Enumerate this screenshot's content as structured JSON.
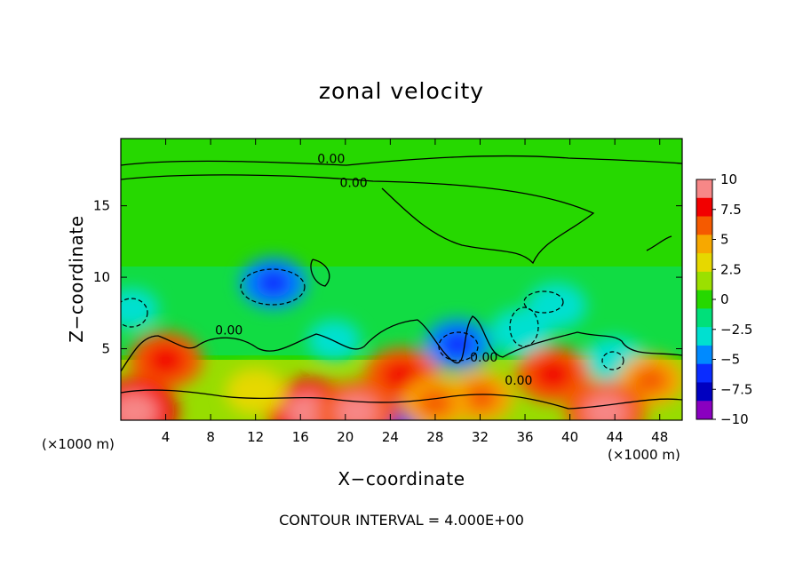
{
  "chart_data": {
    "type": "heatmap",
    "title": "zonal velocity",
    "xlabel": "X−coordinate",
    "ylabel": "Z−coordinate",
    "x_unit_left": "(×1000 m)",
    "x_unit_right": "(×1000 m)",
    "footer": "CONTOUR INTERVAL = 4.000E+00",
    "xlim": [
      0,
      50
    ],
    "ylim": [
      0,
      19.7
    ],
    "x_ticks": [
      4,
      8,
      12,
      16,
      20,
      24,
      28,
      32,
      36,
      40,
      44,
      48
    ],
    "x_tick_labels": [
      "4",
      "8",
      "12",
      "16",
      "20",
      "24",
      "28",
      "32",
      "36",
      "40",
      "44",
      "48"
    ],
    "y_ticks": [
      5,
      10,
      15
    ],
    "y_tick_labels": [
      "5",
      "10",
      "15"
    ],
    "colorbar": {
      "range": [
        -10,
        10
      ],
      "ticks": [
        10,
        7.5,
        5,
        2.5,
        0,
        -2.5,
        -5,
        -7.5,
        -10
      ],
      "tick_labels": [
        "10",
        "7.5",
        "5",
        "2.5",
        "0",
        "−2.5",
        "−5",
        "−7.5",
        "−10"
      ],
      "colors": [
        "#f78787",
        "#f20000",
        "#f55a00",
        "#f7a800",
        "#e6d800",
        "#9be000",
        "#26d800",
        "#00e07a",
        "#00e0d0",
        "#008aff",
        "#0a2cff",
        "#0000c0",
        "#8a00c0"
      ]
    },
    "contour_labels": [
      {
        "text": "0.00",
        "x": 17.5,
        "y": 18.0
      },
      {
        "text": "0.00",
        "x": 19.5,
        "y": 16.3
      },
      {
        "text": "0.00",
        "x": 8.4,
        "y": 6.0
      },
      {
        "text": "0.00",
        "x": 31.1,
        "y": 4.1
      },
      {
        "text": "0.00",
        "x": 34.2,
        "y": 2.5
      }
    ],
    "features": [
      {
        "kind": "negative",
        "x": 13.6,
        "y": 9.6,
        "value": -5
      },
      {
        "kind": "negative",
        "x": 30.0,
        "y": 5.3,
        "value": -5
      },
      {
        "kind": "negative",
        "x": 38.8,
        "y": 8.0,
        "value": -4
      },
      {
        "kind": "negative",
        "x": 35.6,
        "y": 6.2,
        "value": -4
      },
      {
        "kind": "negative",
        "x": 19.0,
        "y": 5.6,
        "value": -3
      },
      {
        "kind": "negative",
        "x": 44.0,
        "y": 4.2,
        "value": -4
      },
      {
        "kind": "negative",
        "x": 1.0,
        "y": 7.8,
        "value": -3
      },
      {
        "kind": "negative",
        "x": 24.2,
        "y": 0.6,
        "value": -6
      },
      {
        "kind": "positive",
        "x": 4.0,
        "y": 4.2,
        "value": 6
      },
      {
        "kind": "positive",
        "x": 25.0,
        "y": 3.1,
        "value": 6
      },
      {
        "kind": "positive",
        "x": 38.5,
        "y": 3.2,
        "value": 6
      },
      {
        "kind": "positive",
        "x": 47.2,
        "y": 2.8,
        "value": 5
      },
      {
        "kind": "positive",
        "x": 1.2,
        "y": 0.6,
        "value": 8
      },
      {
        "kind": "positive",
        "x": 16.8,
        "y": 0.6,
        "value": 8
      },
      {
        "kind": "positive",
        "x": 21.0,
        "y": 0.6,
        "value": 7
      },
      {
        "kind": "positive",
        "x": 32.0,
        "y": 1.6,
        "value": 5
      },
      {
        "kind": "positive",
        "x": 43.2,
        "y": 0.6,
        "value": 7
      },
      {
        "kind": "positive",
        "x": 12.0,
        "y": 2.0,
        "value": 4
      },
      {
        "kind": "positive",
        "x": 28.0,
        "y": 1.2,
        "value": 5
      }
    ]
  }
}
